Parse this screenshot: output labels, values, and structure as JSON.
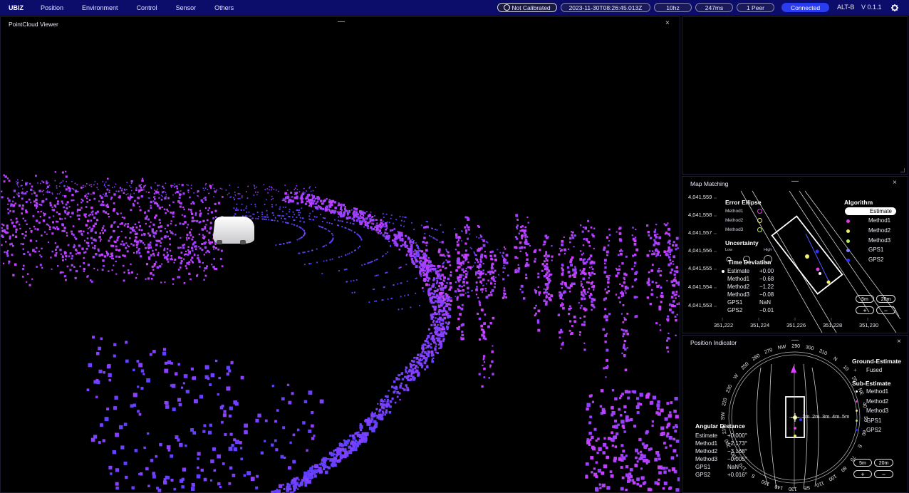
{
  "topbar": {
    "brand": "UBIZ",
    "menu": [
      "Position",
      "Environment",
      "Control",
      "Sensor",
      "Others"
    ],
    "calibration": "Not Calibrated",
    "timestamp": "2023-11-30T08:26:45.013Z",
    "rate": "10hz",
    "latency": "247ms",
    "peers": "1 Peer",
    "connection": "Connected",
    "device": "ALT-B",
    "version": "V 0.1.1"
  },
  "pointcloud": {
    "title": "PointCloud Viewer",
    "minimize": "—",
    "close": "×"
  },
  "top_right": {
    "minimize": "—"
  },
  "map_matching": {
    "title": "Map Matching",
    "minimize": "—",
    "close": "×",
    "y_ticks": [
      "4,041,559",
      "4,041,558",
      "4,041,557",
      "4,041,556",
      "4,041,555",
      "4,041,554",
      "4,041,553"
    ],
    "x_ticks": [
      "351,222",
      "351,224",
      "351,226",
      "351,228",
      "351,230"
    ],
    "error_ellipse": {
      "header": "Error Ellipse",
      "items": [
        "Method1",
        "Method2",
        "Method3"
      ]
    },
    "uncertainty": {
      "header": "Uncertainty",
      "low": "Low",
      "high": "High"
    },
    "time_deviation": {
      "header": "Time Deviation",
      "rows": [
        {
          "label": "Estimate",
          "value": "+0.00"
        },
        {
          "label": "Method1",
          "value": "−0.68"
        },
        {
          "label": "Method2",
          "value": "−1.22"
        },
        {
          "label": "Method3",
          "value": "−0.08"
        },
        {
          "label": "GPS1",
          "value": "NaN"
        },
        {
          "label": "GPS2",
          "value": "−0.01"
        }
      ]
    },
    "algorithm": {
      "header": "Algorithm",
      "items": [
        {
          "label": "Estimate",
          "color": "#ffffff"
        },
        {
          "label": "Method1",
          "color": "#e040e0"
        },
        {
          "label": "Method2",
          "color": "#f0f070"
        },
        {
          "label": "Method3",
          "color": "#b0f060"
        },
        {
          "label": "GPS1",
          "color": "#8080ff"
        },
        {
          "label": "GPS2",
          "color": "#3030ff"
        }
      ]
    },
    "zoom": [
      "5m",
      "20m"
    ],
    "zoom_in": "+",
    "zoom_out": "−"
  },
  "position_indicator": {
    "title": "Position Indicator",
    "minimize": "—",
    "close": "×",
    "compass_labels": [
      "NW",
      "290",
      "300",
      "310",
      "N",
      "10",
      "20",
      "NE",
      "40",
      "50",
      "60",
      "E",
      "70",
      "80",
      "100",
      "110",
      "SE",
      "130",
      "140",
      "150",
      "S",
      "170",
      "190",
      "200",
      "210",
      "SW",
      "220",
      "230",
      "W",
      "250",
      "260",
      "270"
    ],
    "range_labels": [
      "1m",
      "2m",
      "3m",
      "4m",
      "5m"
    ],
    "ground_estimate": {
      "header": "Ground-Estimate",
      "items": [
        "Fused"
      ]
    },
    "sub_estimate": {
      "header": "Sub-Estimate",
      "items": [
        {
          "label": "Method1",
          "color": "#ffffff"
        },
        {
          "label": "Method2",
          "color": "#e040e0"
        },
        {
          "label": "Method3",
          "color": "#f0f070"
        },
        {
          "label": "GPS1",
          "color": "#b0f060"
        },
        {
          "label": "GPS2",
          "color": "#3030ff"
        }
      ]
    },
    "angular_distance": {
      "header": "Angular Distance",
      "rows": [
        {
          "label": "Estimate",
          "value": "+0.000°"
        },
        {
          "label": "Method1",
          "value": "−2.173°"
        },
        {
          "label": "Method2",
          "value": "−3.168°"
        },
        {
          "label": "Method3",
          "value": "−0.005°"
        },
        {
          "label": "GPS1",
          "value": "NaN"
        },
        {
          "label": "GPS2",
          "value": "+0.016°"
        }
      ]
    },
    "zoom": [
      "5m",
      "20m"
    ],
    "zoom_in": "+",
    "zoom_out": "−"
  },
  "colors": {
    "topbar": "#0c0c6a",
    "accent": "#2a3cf0",
    "cloud_near": "#e040ff",
    "cloud_far": "#3040ff"
  },
  "icons": {
    "calibration": "no-calibration-icon",
    "settings": "gear-icon"
  }
}
